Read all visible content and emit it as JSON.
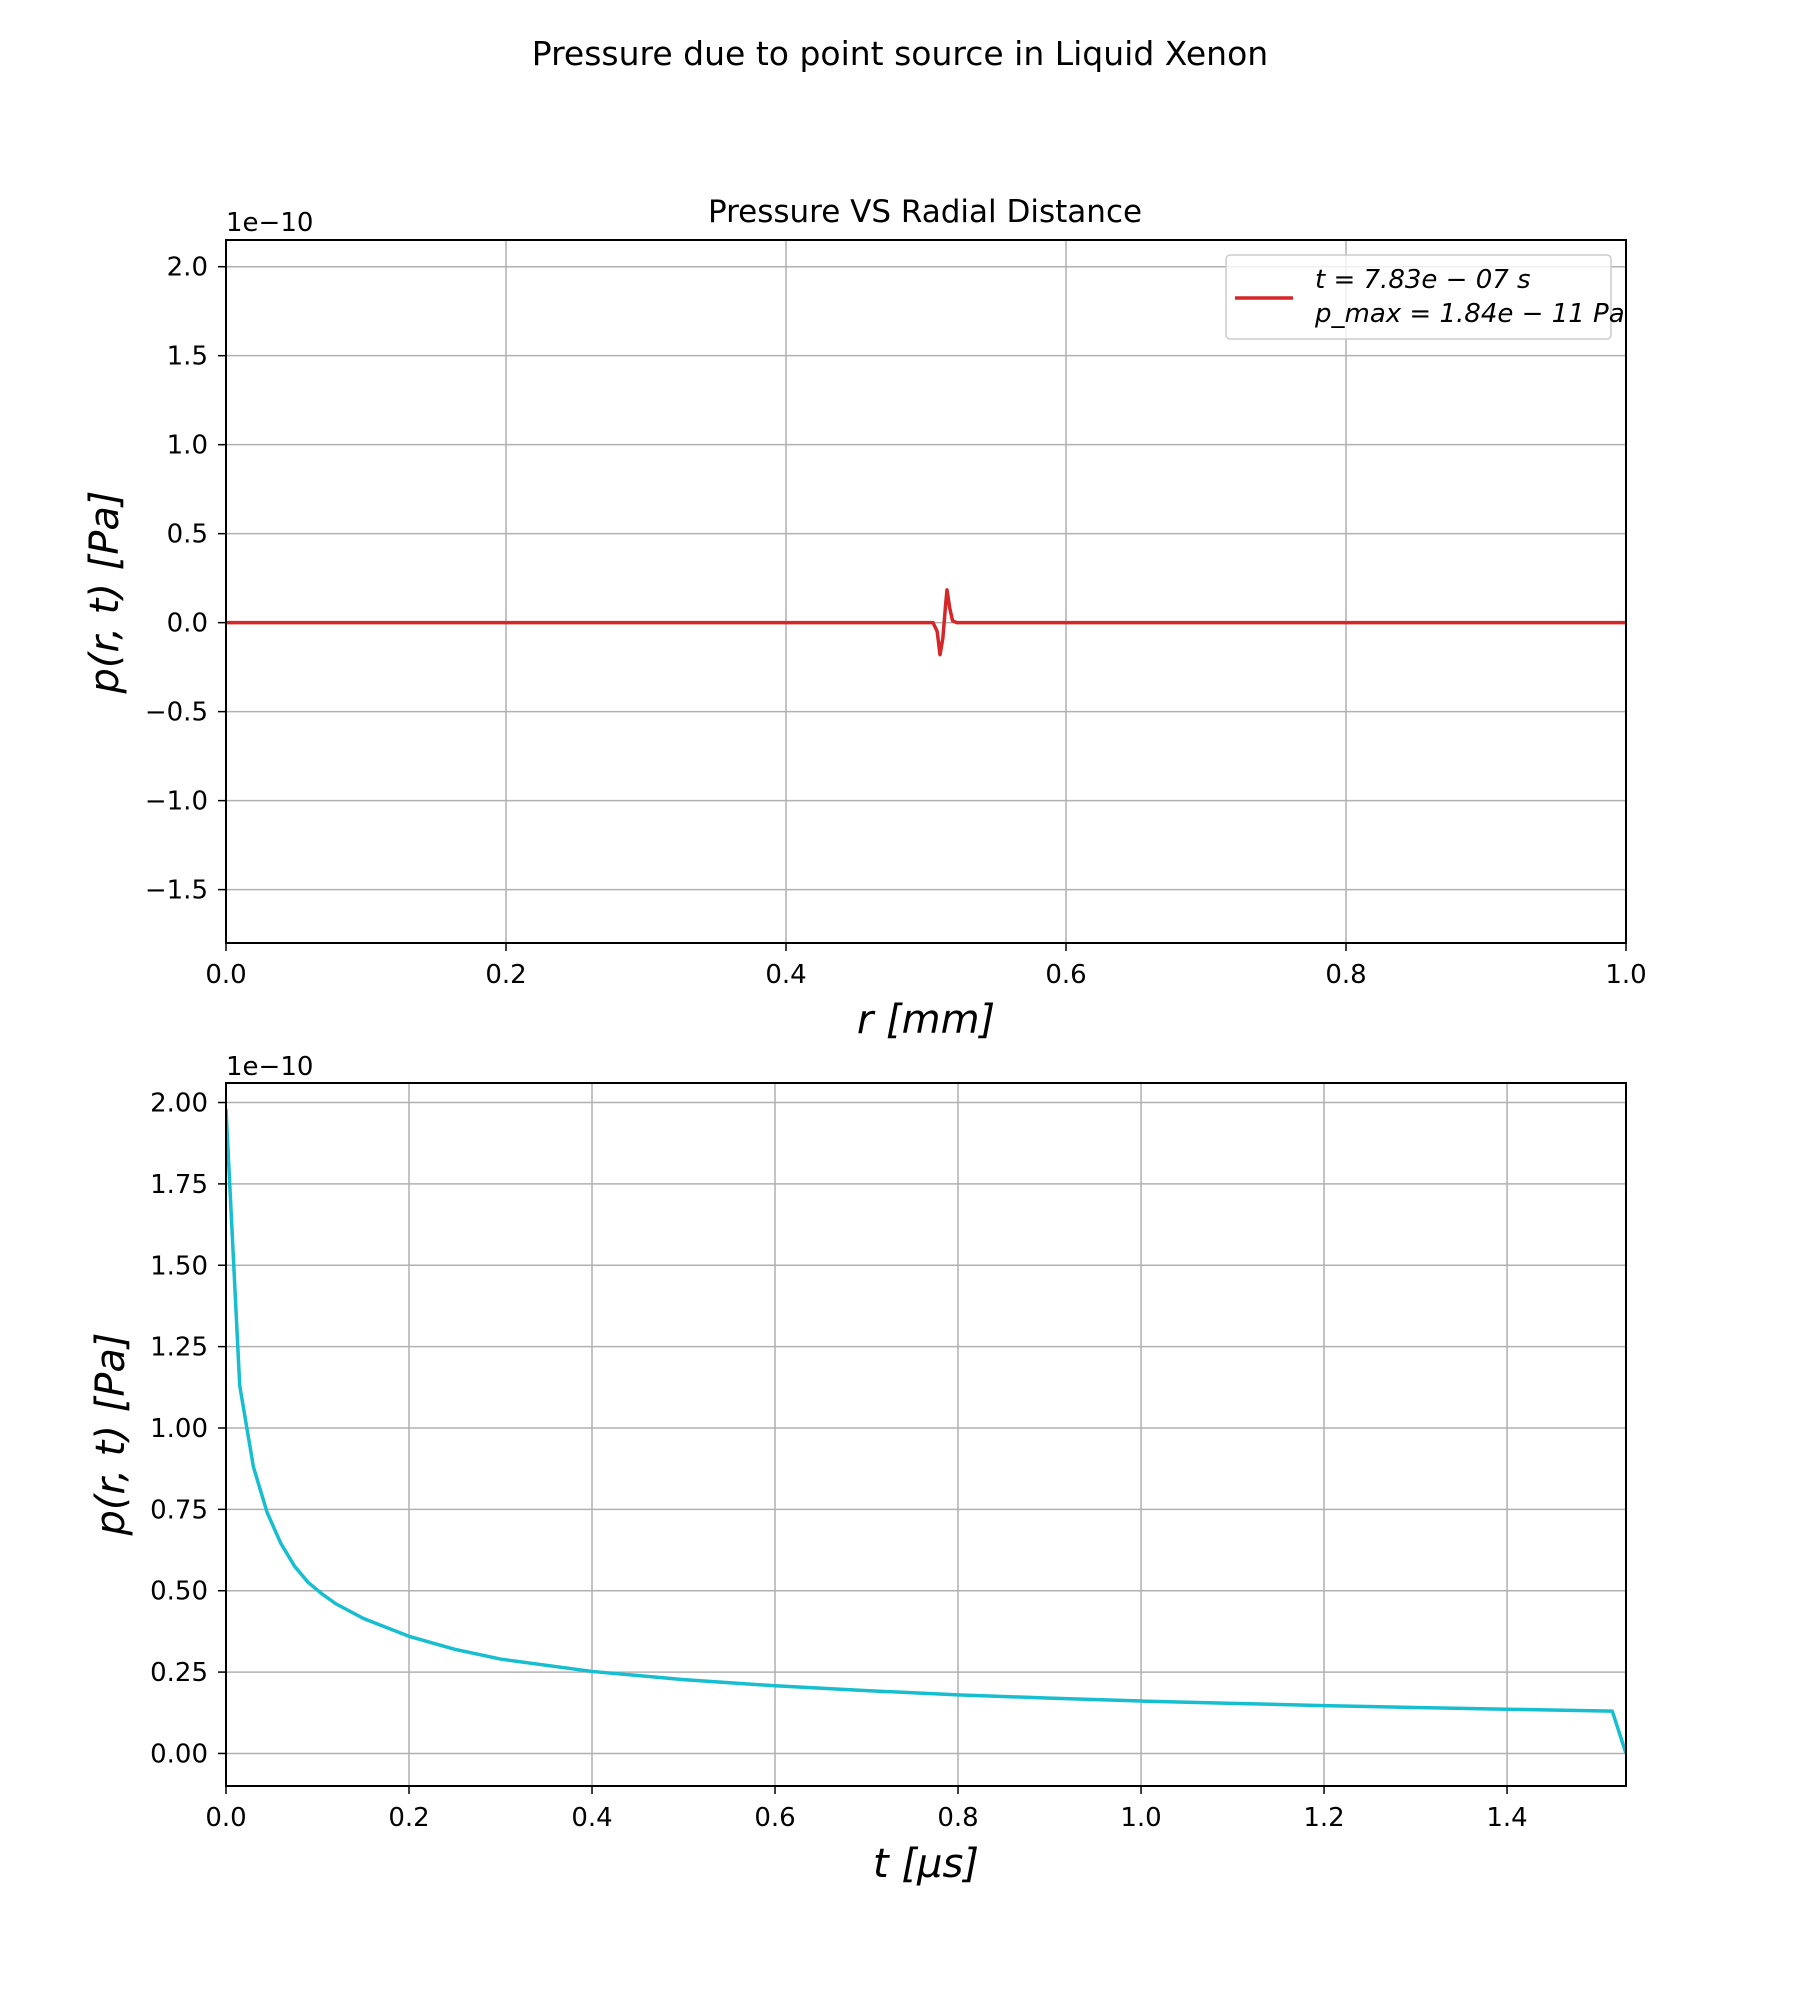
{
  "figure": {
    "suptitle": "Pressure due to point source in Liquid Xenon"
  },
  "chart_data": [
    {
      "type": "line",
      "title": "Pressure VS Radial Distance",
      "xlabel": "r [mm]",
      "ylabel": "p(r, t) [Pa]",
      "y_offset_label": "1e−10",
      "xlim": [
        0.0,
        1.0
      ],
      "ylim": [
        -1.8,
        2.15
      ],
      "y_scale": 1e-10,
      "xticks": [
        0.0,
        0.2,
        0.4,
        0.6,
        0.8,
        1.0
      ],
      "xtick_labels": [
        "0.0",
        "0.2",
        "0.4",
        "0.6",
        "0.8",
        "1.0"
      ],
      "yticks": [
        -1.5,
        -1.0,
        -0.5,
        0.0,
        0.5,
        1.0,
        1.5,
        2.0
      ],
      "ytick_labels": [
        "−1.5",
        "−1.0",
        "−0.5",
        "0.0",
        "0.5",
        "1.0",
        "1.5",
        "2.0"
      ],
      "grid": true,
      "legend_position": "top-right",
      "series": [
        {
          "name": "t = 7.83e − 07 s\np_max = 1.84e − 11 Pa",
          "legend_lines": [
            "t = 7.83e − 07 s",
            "p_max = 1.84e − 11 Pa"
          ],
          "color": "#d62728",
          "x": [
            0.0,
            0.505,
            0.508,
            0.51,
            0.512,
            0.514,
            0.515,
            0.517,
            0.519,
            0.522,
            1.0
          ],
          "y": [
            0.0,
            0.0,
            -0.05,
            -0.18,
            -0.09,
            0.1,
            0.184,
            0.08,
            0.01,
            0.0,
            0.0
          ]
        }
      ]
    },
    {
      "type": "line",
      "title": "",
      "xlabel": "t [μs]",
      "ylabel": "p(r, t) [Pa]",
      "y_offset_label": "1e−10",
      "xlim": [
        0.0,
        1.53
      ],
      "ylim": [
        -0.1,
        2.06
      ],
      "y_scale": 1e-10,
      "xticks": [
        0.0,
        0.2,
        0.4,
        0.6,
        0.8,
        1.0,
        1.2,
        1.4
      ],
      "xtick_labels": [
        "0.0",
        "0.2",
        "0.4",
        "0.6",
        "0.8",
        "1.0",
        "1.2",
        "1.4"
      ],
      "yticks": [
        0.0,
        0.25,
        0.5,
        0.75,
        1.0,
        1.25,
        1.5,
        1.75,
        2.0
      ],
      "ytick_labels": [
        "0.00",
        "0.25",
        "0.50",
        "0.75",
        "1.00",
        "1.25",
        "1.50",
        "1.75",
        "2.00"
      ],
      "grid": true,
      "series": [
        {
          "color": "#17becf",
          "x": [
            0.0,
            0.015,
            0.03,
            0.045,
            0.06,
            0.075,
            0.09,
            0.105,
            0.12,
            0.15,
            0.2,
            0.25,
            0.3,
            0.4,
            0.5,
            0.6,
            0.7,
            0.8,
            0.9,
            1.0,
            1.1,
            1.2,
            1.3,
            1.4,
            1.5,
            1.515,
            1.53
          ],
          "y": [
            1.98,
            1.13,
            0.88,
            0.74,
            0.645,
            0.575,
            0.525,
            0.49,
            0.46,
            0.415,
            0.36,
            0.32,
            0.29,
            0.252,
            0.227,
            0.208,
            0.193,
            0.18,
            0.17,
            0.161,
            0.154,
            0.147,
            0.141,
            0.136,
            0.131,
            0.13,
            0.0
          ]
        }
      ]
    }
  ]
}
